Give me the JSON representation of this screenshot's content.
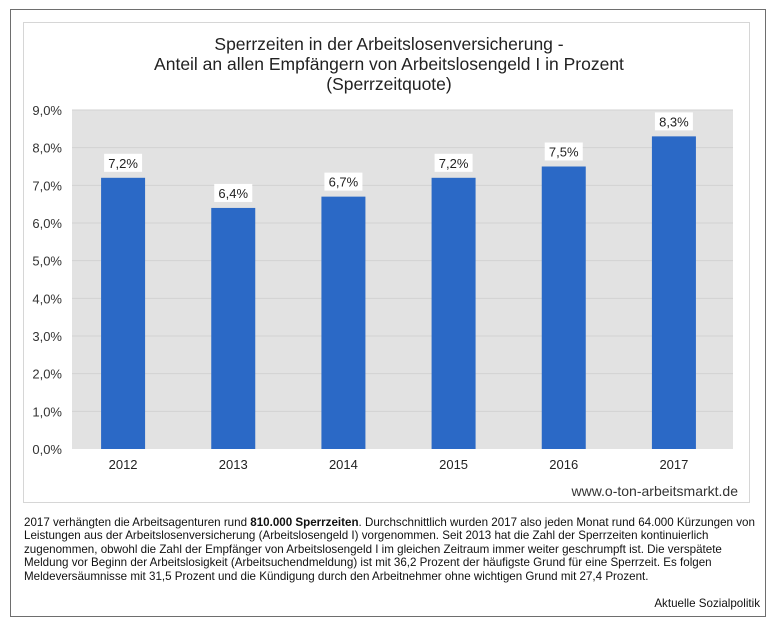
{
  "chart_data": {
    "type": "bar",
    "title": "Sperrzeiten in der Arbeitslosenversicherung - Anteil an allen Empfängern von Arbeitslosengeld I in Prozent (Sperrzeitquote)",
    "title_lines": [
      "Sperrzeiten in der Arbeitslosenversicherung -",
      "Anteil an allen Empfängern von Arbeitslosengeld I in Prozent",
      "(Sperrzeitquote)"
    ],
    "categories": [
      "2012",
      "2013",
      "2014",
      "2015",
      "2016",
      "2017"
    ],
    "values": [
      7.2,
      6.4,
      6.7,
      7.2,
      7.5,
      8.3
    ],
    "data_labels": [
      "7,2%",
      "6,4%",
      "6,7%",
      "7,2%",
      "7,5%",
      "8,3%"
    ],
    "xlabel": "",
    "ylabel": "",
    "ylim": [
      0,
      9
    ],
    "yticks": [
      0,
      1,
      2,
      3,
      4,
      5,
      6,
      7,
      8,
      9
    ],
    "ytick_labels": [
      "0,0%",
      "1,0%",
      "2,0%",
      "3,0%",
      "4,0%",
      "5,0%",
      "6,0%",
      "7,0%",
      "8,0%",
      "9,0%"
    ],
    "grid": true,
    "legend": "none",
    "colors": {
      "bar": "#2b69c6",
      "plot_bg": "#e2e2e2",
      "grid": "#d2d2d2"
    }
  },
  "watermark": "www.o-ton-arbeitsmarkt.de",
  "caption": {
    "part1": "2017 verhängten die Arbeitsagenturen rund ",
    "bold": "810.000 Sperrzeiten",
    "part2": ". Durchschnittlich wurden 2017 also jeden Monat rund 64.000 Kürzungen von Leistungen aus der Arbeitslosenversicherung (Arbeitslosengeld I) vorgenommen. Seit 2013 hat die Zahl der Sperrzeiten kontinuierlich zugenommen, obwohl die Zahl der Empfänger von Arbeitslosengeld I im gleichen Zeitraum immer weiter geschrumpft ist. Die verspätete Meldung vor Beginn der Arbeitslosigkeit (Arbeitsuchendmeldung) ist mit 36,2 Prozent der häufigste Grund für eine Sperrzeit. Es folgen Meldeversäumnisse mit 31,5 Prozent und die Kündigung durch den Arbeitnehmer ohne wichtigen Grund mit 27,4 Prozent."
  },
  "source": "Aktuelle Sozialpolitik"
}
